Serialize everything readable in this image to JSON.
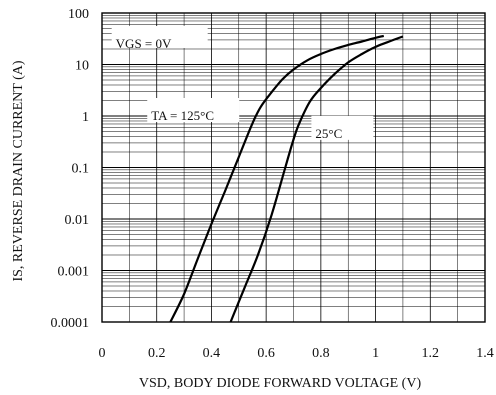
{
  "chart_data": {
    "type": "line",
    "title": "",
    "xlabel": "VSD, BODY DIODE FORWARD VOLTAGE (V)",
    "ylabel": "IS, REVERSE DRAIN CURRENT (A)",
    "xlim": [
      0,
      1.4
    ],
    "ylim": [
      0.0001,
      100
    ],
    "yscale": "log",
    "grid": true,
    "x_ticks": [
      0,
      0.2,
      0.4,
      0.6,
      0.8,
      1,
      1.2,
      1.4
    ],
    "x_tick_labels": [
      "0",
      "0.2",
      "0.4",
      "0.6",
      "0.8",
      "1",
      "1.2",
      "1.4"
    ],
    "y_ticks": [
      0.0001,
      0.001,
      0.01,
      0.1,
      1,
      10,
      100
    ],
    "y_tick_labels": [
      "0.0001",
      "0.001",
      "0.01",
      "0.1",
      "1",
      "10",
      "100"
    ],
    "annotations": [
      {
        "text": "VGS = 0V",
        "at": [
          0.05,
          25
        ]
      },
      {
        "text": "TA = 125°C",
        "at": [
          0.18,
          1.0
        ]
      },
      {
        "text": "25°C",
        "at": [
          0.78,
          0.45
        ]
      }
    ],
    "series": [
      {
        "name": "TA = 125°C",
        "x": [
          0.25,
          0.3,
          0.35,
          0.4,
          0.45,
          0.5,
          0.55,
          0.58,
          0.62,
          0.66,
          0.7,
          0.75,
          0.8,
          0.85,
          0.9,
          0.95,
          1.0,
          1.03
        ],
        "y": [
          0.0001,
          0.00035,
          0.0017,
          0.008,
          0.035,
          0.16,
          0.72,
          1.5,
          2.9,
          5.2,
          8.0,
          12,
          16,
          20,
          24,
          28,
          33,
          36
        ]
      },
      {
        "name": "25°C",
        "x": [
          0.47,
          0.52,
          0.57,
          0.62,
          0.67,
          0.7,
          0.72,
          0.76,
          0.8,
          0.85,
          0.9,
          0.95,
          1.0,
          1.05,
          1.1
        ],
        "y": [
          0.0001,
          0.00045,
          0.002,
          0.012,
          0.1,
          0.35,
          0.7,
          1.9,
          3.5,
          6.5,
          11,
          16,
          22,
          28,
          35
        ]
      }
    ]
  }
}
